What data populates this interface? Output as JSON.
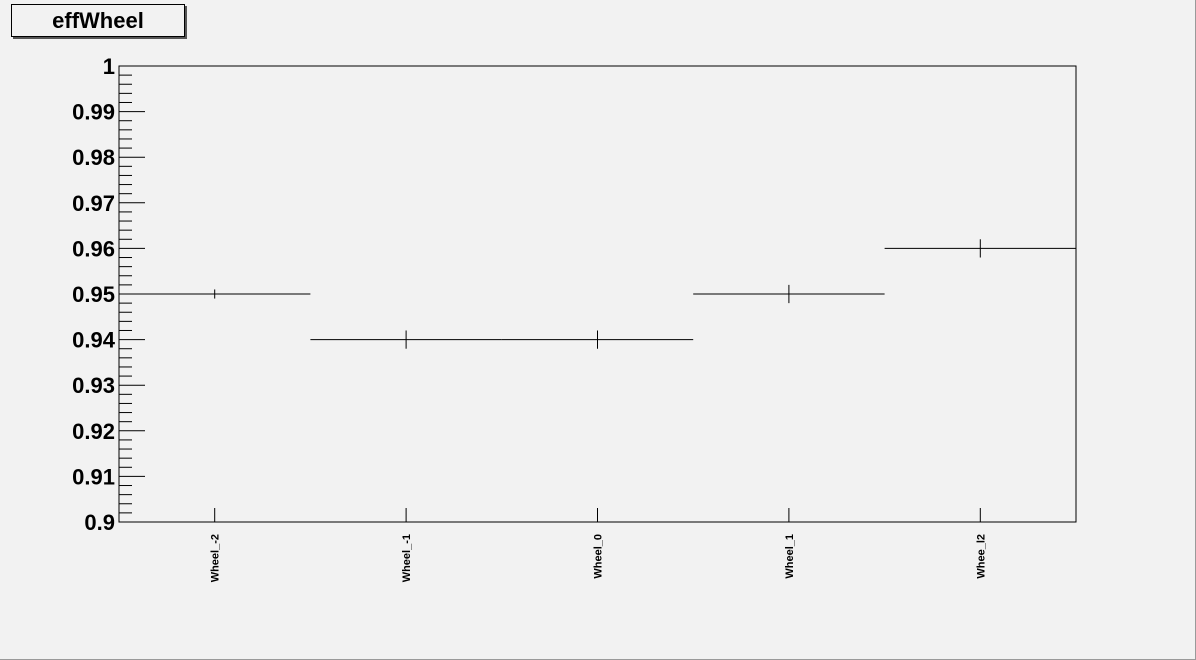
{
  "chart_data": {
    "type": "scatter",
    "title": "effWheel",
    "xlabel": "",
    "ylabel": "",
    "categories": [
      "Wheel_-2",
      "Wheel_-1",
      "Wheel_0",
      "Wheel_1",
      "Whee_l2"
    ],
    "values": [
      0.95,
      0.94,
      0.94,
      0.95,
      0.96
    ],
    "errors": [
      0.001,
      0.002,
      0.002,
      0.002,
      0.002
    ],
    "ylim": [
      0.9,
      1.0
    ],
    "yticks": [
      "0.9",
      "0.91",
      "0.92",
      "0.93",
      "0.94",
      "0.95",
      "0.96",
      "0.97",
      "0.98",
      "0.99",
      "1"
    ],
    "grid": false,
    "legend": "none",
    "colors": {
      "background": "#f2f2f2",
      "frame": "#000000",
      "marker": "#000000"
    }
  }
}
